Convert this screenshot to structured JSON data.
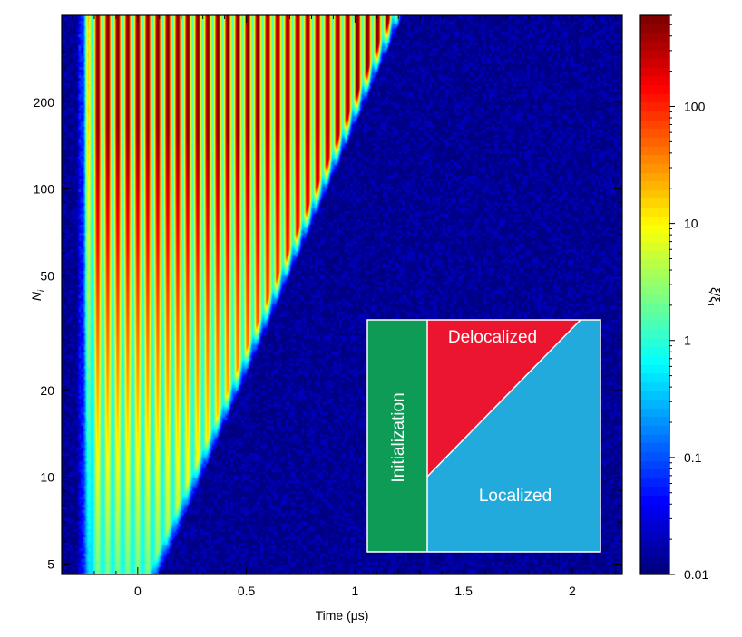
{
  "chart_data": {
    "type": "heatmap",
    "title": "",
    "xlabel": "Time (μs)",
    "ylabel": "N",
    "ylabel_subscript": "i",
    "xlim": [
      -0.35,
      2.23
    ],
    "ylim": [
      4.6,
      400
    ],
    "y_scale": "log",
    "x_ticks": [
      0,
      0.5,
      1,
      1.5,
      2
    ],
    "x_tick_labels": [
      "0",
      "0.5",
      "1",
      "1.5",
      "2"
    ],
    "y_ticks": [
      5,
      10,
      20,
      50,
      100,
      200
    ],
    "y_tick_labels": [
      "5",
      "10",
      "20",
      "50",
      "100",
      "200"
    ],
    "colorbar": {
      "label": "ξ/ξ",
      "label_subscript": "1",
      "scale": "log",
      "range": [
        0.01,
        600
      ],
      "ticks": [
        0.01,
        0.1,
        1,
        10,
        100
      ],
      "tick_labels": [
        "0.01",
        "0.1",
        "1",
        "10",
        "100"
      ],
      "colormap": "jet"
    },
    "model": {
      "initialization_end_x": -0.28,
      "delocalization_boundary": "t = 0.13 + 0.25 * (ln N - ln 5)",
      "oscillation_period_x": 0.046,
      "peak_ratio": 600,
      "background_ratio": 0.012
    },
    "inset": {
      "regions": [
        {
          "label": "Initialization",
          "color": "#0d9b55"
        },
        {
          "label": "Delocalized",
          "color": "#ec1530"
        },
        {
          "label": "Localized",
          "color": "#22aadc"
        }
      ]
    }
  }
}
